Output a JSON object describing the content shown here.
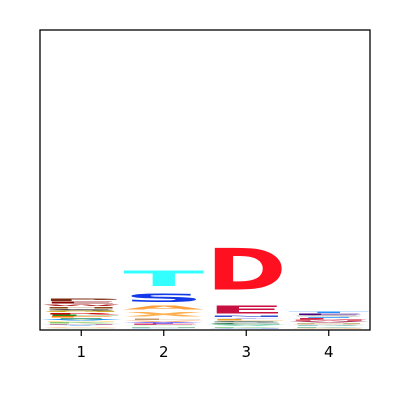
{
  "chart_data": {
    "type": "sequence-logo",
    "title": "",
    "xlabel": "",
    "ylabel": "",
    "categories": [
      "1",
      "2",
      "3",
      "4"
    ],
    "ylim": [
      0,
      1.0
    ],
    "positions": [
      {
        "label": "1",
        "letters": [
          {
            "char": "A",
            "height": 0.004,
            "color": "#0d3b8c"
          },
          {
            "char": "C",
            "height": 0.004,
            "color": "#b0e0a0"
          },
          {
            "char": "Q",
            "height": 0.004,
            "color": "#ff9955"
          },
          {
            "char": "Y",
            "height": 0.005,
            "color": "#9ad0ff"
          },
          {
            "char": "N",
            "height": 0.004,
            "color": "#dd3355"
          },
          {
            "char": "K",
            "height": 0.005,
            "color": "#8ac86c"
          },
          {
            "char": "M",
            "height": 0.004,
            "color": "#ffcc33"
          },
          {
            "char": "V",
            "height": 0.005,
            "color": "#1e90ff"
          },
          {
            "char": "I",
            "height": 0.005,
            "color": "#2e8b57"
          },
          {
            "char": "F",
            "height": 0.005,
            "color": "#ff7700"
          },
          {
            "char": "L",
            "height": 0.006,
            "color": "#228b22"
          },
          {
            "char": "R",
            "height": 0.007,
            "color": "#cc0000"
          },
          {
            "char": "G",
            "height": 0.006,
            "color": "#c8a000"
          },
          {
            "char": "S",
            "height": 0.007,
            "color": "#222222"
          },
          {
            "char": "H",
            "height": 0.007,
            "color": "#8b4513"
          },
          {
            "char": "W",
            "height": 0.008,
            "color": "#b22222"
          },
          {
            "char": "E",
            "height": 0.009,
            "color": "#8b0000"
          },
          {
            "char": "P",
            "height": 0.012,
            "color": "#7a2a10"
          }
        ]
      },
      {
        "label": "2",
        "letters": [
          {
            "char": "R",
            "height": 0.004,
            "color": "#55aa55"
          },
          {
            "char": "K",
            "height": 0.004,
            "color": "#a0d0ff"
          },
          {
            "char": "N",
            "height": 0.004,
            "color": "#2e8b57"
          },
          {
            "char": "Q",
            "height": 0.004,
            "color": "#99ff99"
          },
          {
            "char": "E",
            "height": 0.005,
            "color": "#dd4477"
          },
          {
            "char": "Y",
            "height": 0.005,
            "color": "#4040ff"
          },
          {
            "char": "V",
            "height": 0.006,
            "color": "#ffb07a"
          },
          {
            "char": "L",
            "height": 0.008,
            "color": "#c49a6c"
          },
          {
            "char": "X",
            "height": 0.024,
            "color": "#ffb050"
          },
          {
            "char": "A",
            "height": 0.02,
            "color": "#ffa03c"
          },
          {
            "char": "S",
            "height": 0.046,
            "color": "#1238e8"
          },
          {
            "char": "T",
            "height": 0.083,
            "color": "#33ffff"
          }
        ]
      },
      {
        "label": "3",
        "letters": [
          {
            "char": "A",
            "height": 0.004,
            "color": "#cc6688"
          },
          {
            "char": "G",
            "height": 0.004,
            "color": "#4169e1"
          },
          {
            "char": "K",
            "height": 0.004,
            "color": "#33aa33"
          },
          {
            "char": "V",
            "height": 0.005,
            "color": "#88ddcc"
          },
          {
            "char": "C",
            "height": 0.006,
            "color": "#1a6b30"
          },
          {
            "char": "S",
            "height": 0.007,
            "color": "#2f4f4f"
          },
          {
            "char": "L",
            "height": 0.008,
            "color": "#e8a020"
          },
          {
            "char": "Y",
            "height": 0.004,
            "color": "#6666cc"
          },
          {
            "char": "N",
            "height": 0.005,
            "color": "#3050d0"
          },
          {
            "char": "E",
            "height": 0.042,
            "color": "#c81040"
          },
          {
            "char": "D",
            "height": 0.222,
            "color": "#ff1020"
          }
        ]
      },
      {
        "label": "4",
        "letters": [
          {
            "char": "A",
            "height": 0.004,
            "color": "#8b0000"
          },
          {
            "char": "G",
            "height": 0.004,
            "color": "#ff9933"
          },
          {
            "char": "K",
            "height": 0.004,
            "color": "#2e8b57"
          },
          {
            "char": "R",
            "height": 0.004,
            "color": "#20a0a0"
          },
          {
            "char": "Q",
            "height": 0.004,
            "color": "#d08060"
          },
          {
            "char": "N",
            "height": 0.004,
            "color": "#808000"
          },
          {
            "char": "V",
            "height": 0.005,
            "color": "#aa3355"
          },
          {
            "char": "M",
            "height": 0.005,
            "color": "#dd6677"
          },
          {
            "char": "L",
            "height": 0.005,
            "color": "#cc2244"
          },
          {
            "char": "I",
            "height": 0.004,
            "color": "#1e90ff"
          },
          {
            "char": "S",
            "height": 0.006,
            "color": "#a0a0a0"
          },
          {
            "char": "E",
            "height": 0.006,
            "color": "#4b0082"
          },
          {
            "char": "T",
            "height": 0.008,
            "color": "#1e90ff"
          }
        ]
      }
    ]
  }
}
